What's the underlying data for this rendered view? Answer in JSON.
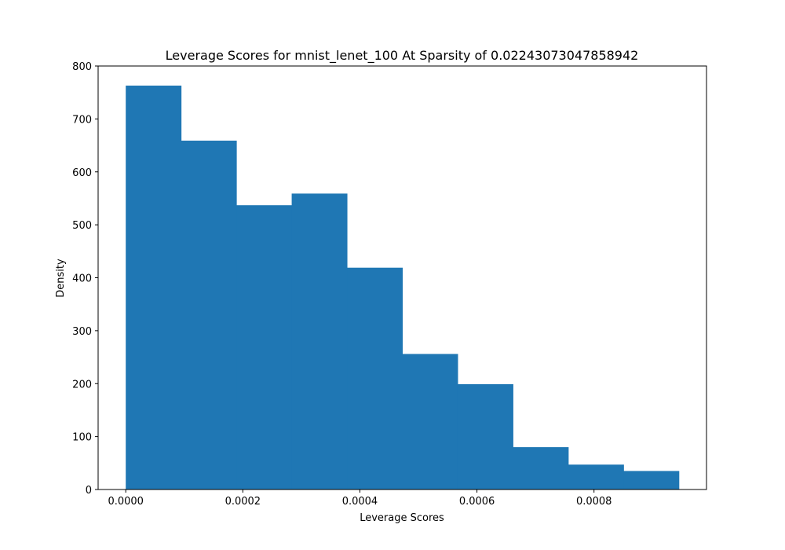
{
  "chart_data": {
    "type": "bar",
    "title": "Leverage Scores for mnist_lenet_100 At Sparsity of 0.02243073047858942",
    "xlabel": "Leverage Scores",
    "ylabel": "Density",
    "bin_edges": [
      0.0,
      9.45e-05,
      0.000189,
      0.0002835,
      0.000378,
      0.0004725,
      0.000567,
      0.0006615,
      0.000756,
      0.0008505,
      0.000945
    ],
    "values": [
      763,
      659,
      537,
      559,
      419,
      256,
      199,
      80,
      47,
      35
    ],
    "xlim": [
      -4.72e-05,
      0.0009922
    ],
    "ylim": [
      0,
      800
    ],
    "xticks": [
      0.0,
      0.0002,
      0.0004,
      0.0006,
      0.0008
    ],
    "xtick_labels": [
      "0.0000",
      "0.0002",
      "0.0004",
      "0.0006",
      "0.0008"
    ],
    "yticks": [
      0,
      100,
      200,
      300,
      400,
      500,
      600,
      700,
      800
    ],
    "ytick_labels": [
      "0",
      "100",
      "200",
      "300",
      "400",
      "500",
      "600",
      "700",
      "800"
    ],
    "bar_color": "#1f77b4",
    "grid": false,
    "legend": "none"
  }
}
